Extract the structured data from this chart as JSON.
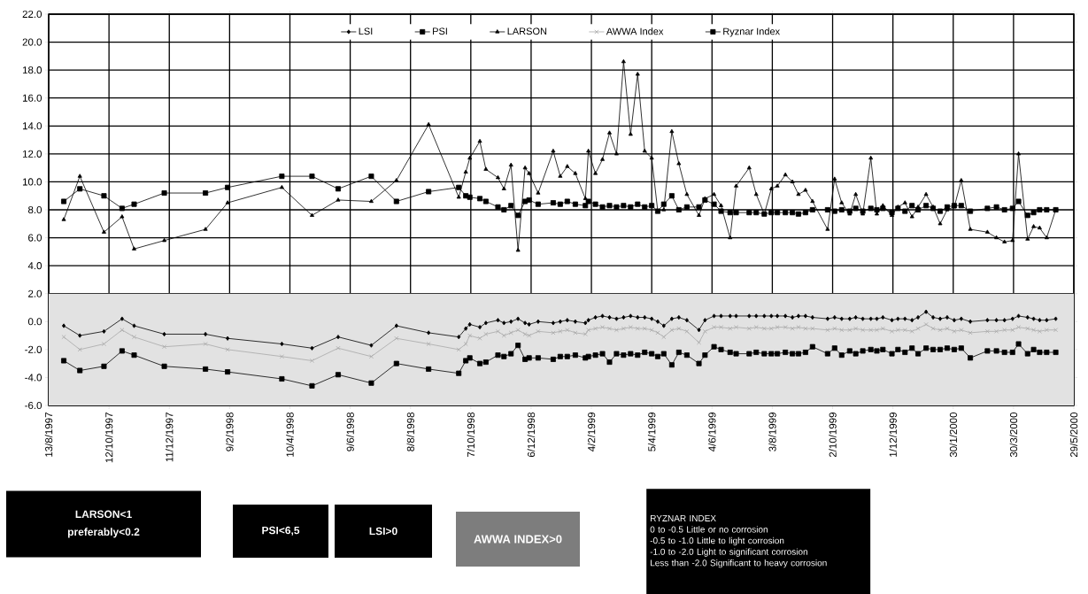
{
  "chart_data": {
    "type": "line",
    "x": [
      "1997-08-28",
      "1997-09-13",
      "1997-10-07",
      "1997-10-25",
      "1997-11-06",
      "1997-12-06",
      "1998-01-16",
      "1998-02-07",
      "1998-04-02",
      "1998-05-02",
      "1998-05-28",
      "1998-06-30",
      "1998-07-25",
      "1998-08-26",
      "1998-09-25",
      "1998-10-02",
      "1998-10-06",
      "1998-10-16",
      "1998-10-22",
      "1998-11-03",
      "1998-11-09",
      "1998-11-16",
      "1998-11-23",
      "1998-11-30",
      "1998-12-04",
      "1998-12-13",
      "1998-12-28",
      "1999-01-04",
      "1999-01-11",
      "1999-01-19",
      "1999-01-29",
      "1999-02-01",
      "1999-02-08",
      "1999-02-15",
      "1999-02-22",
      "1999-03-01",
      "1999-03-08",
      "1999-03-15",
      "1999-03-22",
      "1999-03-29",
      "1999-04-05",
      "1999-04-11",
      "1999-04-17",
      "1999-04-25",
      "1999-05-02",
      "1999-05-10",
      "1999-05-22",
      "1999-05-28",
      "1999-06-06",
      "1999-06-13",
      "1999-06-22",
      "1999-06-28",
      "1999-07-11",
      "1999-07-18",
      "1999-07-26",
      "1999-08-02",
      "1999-08-08",
      "1999-08-16",
      "1999-08-23",
      "1999-08-29",
      "1999-09-05",
      "1999-09-12",
      "1999-09-27",
      "1999-10-04",
      "1999-10-11",
      "1999-10-19",
      "1999-10-25",
      "1999-11-01",
      "1999-11-09",
      "1999-11-15",
      "1999-11-21",
      "1999-11-30",
      "1999-12-06",
      "1999-12-13",
      "1999-12-20",
      "1999-12-26",
      "2000-01-03",
      "2000-01-10",
      "2000-01-17",
      "2000-01-24",
      "2000-01-31",
      "2000-02-07",
      "2000-02-16",
      "2000-03-04",
      "2000-03-13",
      "2000-03-21",
      "2000-03-29",
      "2000-04-04",
      "2000-04-13",
      "2000-04-19",
      "2000-04-25",
      "2000-05-02",
      "2000-05-11"
    ],
    "series": [
      {
        "name": "LSI",
        "color": "#000000",
        "marker": "diamond",
        "values": [
          -0.3,
          -1.0,
          -0.7,
          0.2,
          -0.3,
          -0.9,
          -0.9,
          -1.2,
          -1.6,
          -1.9,
          -1.1,
          -1.7,
          -0.3,
          -0.8,
          -1.1,
          -0.5,
          -0.2,
          -0.4,
          -0.1,
          0.1,
          -0.1,
          0.0,
          0.2,
          -0.1,
          -0.2,
          0.0,
          -0.1,
          0.0,
          0.1,
          0.0,
          -0.1,
          0.1,
          0.3,
          0.4,
          0.3,
          0.2,
          0.3,
          0.4,
          0.3,
          0.3,
          0.2,
          0.0,
          -0.3,
          0.2,
          0.3,
          0.1,
          -0.6,
          0.1,
          0.4,
          0.4,
          0.4,
          0.4,
          0.4,
          0.4,
          0.4,
          0.4,
          0.4,
          0.4,
          0.3,
          0.4,
          0.4,
          0.3,
          0.2,
          0.3,
          0.2,
          0.2,
          0.3,
          0.2,
          0.2,
          0.2,
          0.3,
          0.1,
          0.2,
          0.2,
          0.1,
          0.3,
          0.7,
          0.3,
          0.2,
          0.3,
          0.1,
          0.2,
          0.0,
          0.1,
          0.1,
          0.1,
          0.2,
          0.4,
          0.3,
          0.2,
          0.1,
          0.1,
          0.2
        ]
      },
      {
        "name": "PSI",
        "color": "#000000",
        "marker": "square",
        "values": [
          8.6,
          9.5,
          9.0,
          8.1,
          8.4,
          9.2,
          9.2,
          9.6,
          10.4,
          10.4,
          9.5,
          10.4,
          8.6,
          9.3,
          9.6,
          9.0,
          8.9,
          8.8,
          8.6,
          8.2,
          8.0,
          8.3,
          7.6,
          8.6,
          8.7,
          8.4,
          8.5,
          8.4,
          8.6,
          8.4,
          8.3,
          8.6,
          8.4,
          8.2,
          8.3,
          8.2,
          8.3,
          8.2,
          8.4,
          8.2,
          8.3,
          7.9,
          8.4,
          9.0,
          8.0,
          8.2,
          8.2,
          8.7,
          8.4,
          7.9,
          7.8,
          7.8,
          7.8,
          7.8,
          7.7,
          7.8,
          7.8,
          7.8,
          7.8,
          7.7,
          7.8,
          8.0,
          8.0,
          7.9,
          8.0,
          7.9,
          8.1,
          7.9,
          8.1,
          8.0,
          8.1,
          7.8,
          8.1,
          7.9,
          8.3,
          8.0,
          8.3,
          8.1,
          7.9,
          8.2,
          8.3,
          8.3,
          7.9,
          8.1,
          8.2,
          8.0,
          8.1,
          8.6,
          7.6,
          7.8,
          8.0,
          8.0,
          8.0
        ]
      },
      {
        "name": "LARSON",
        "color": "#000000",
        "marker": "triangle",
        "values": [
          7.3,
          10.4,
          6.4,
          7.5,
          5.2,
          5.8,
          6.6,
          8.5,
          9.6,
          7.6,
          8.7,
          8.6,
          10.1,
          14.1,
          8.9,
          10.7,
          11.7,
          12.9,
          10.9,
          10.3,
          9.5,
          11.2,
          5.1,
          11.0,
          10.6,
          9.2,
          12.2,
          10.4,
          11.1,
          10.6,
          8.8,
          12.2,
          10.6,
          11.6,
          13.5,
          12.0,
          18.6,
          13.4,
          17.7,
          12.2,
          11.7,
          7.9,
          8.0,
          13.6,
          11.3,
          9.1,
          7.6,
          8.8,
          9.1,
          8.3,
          6.0,
          9.7,
          11.0,
          9.1,
          7.7,
          9.5,
          9.7,
          10.5,
          10.0,
          9.1,
          9.4,
          8.6,
          6.6,
          10.2,
          8.5,
          7.7,
          9.1,
          7.7,
          11.7,
          7.7,
          8.3,
          7.6,
          8.2,
          8.5,
          7.5,
          8.2,
          9.1,
          8.2,
          7.0,
          8.0,
          8.2,
          10.1,
          6.6,
          6.4,
          6.0,
          5.7,
          5.8,
          12.0,
          5.9,
          6.8,
          6.7,
          6.0,
          8.0
        ]
      },
      {
        "name": "AWWA Index",
        "color": "#a8a8a8",
        "marker": "cross",
        "values": [
          -1.1,
          -2.0,
          -1.6,
          -0.6,
          -1.1,
          -1.8,
          -1.6,
          -2.0,
          -2.5,
          -2.8,
          -1.9,
          -2.5,
          -1.2,
          -1.6,
          -2.0,
          -1.6,
          -1.0,
          -1.2,
          -0.9,
          -0.7,
          -1.0,
          -0.8,
          -0.6,
          -0.9,
          -1.0,
          -0.7,
          -0.8,
          -0.7,
          -0.6,
          -0.8,
          -0.9,
          -0.6,
          -0.5,
          -0.4,
          -0.5,
          -0.6,
          -0.5,
          -0.4,
          -0.5,
          -0.5,
          -0.6,
          -0.8,
          -1.1,
          -0.6,
          -0.5,
          -0.7,
          -1.5,
          -0.7,
          -0.4,
          -0.4,
          -0.5,
          -0.4,
          -0.5,
          -0.4,
          -0.5,
          -0.5,
          -0.4,
          -0.4,
          -0.5,
          -0.4,
          -0.5,
          -0.5,
          -0.6,
          -0.5,
          -0.6,
          -0.6,
          -0.5,
          -0.6,
          -0.6,
          -0.6,
          -0.5,
          -0.7,
          -0.6,
          -0.6,
          -0.7,
          -0.5,
          -0.2,
          -0.5,
          -0.6,
          -0.5,
          -0.7,
          -0.6,
          -0.8,
          -0.7,
          -0.7,
          -0.6,
          -0.6,
          -0.4,
          -0.5,
          -0.6,
          -0.7,
          -0.6,
          -0.6
        ]
      },
      {
        "name": "Ryznar Index",
        "color": "#000000",
        "marker": "square",
        "values": [
          -2.8,
          -3.5,
          -3.2,
          -2.1,
          -2.4,
          -3.2,
          -3.4,
          -3.6,
          -4.1,
          -4.6,
          -3.8,
          -4.4,
          -3.0,
          -3.4,
          -3.7,
          -2.8,
          -2.6,
          -3.0,
          -2.9,
          -2.4,
          -2.5,
          -2.3,
          -1.7,
          -2.7,
          -2.6,
          -2.6,
          -2.7,
          -2.5,
          -2.5,
          -2.4,
          -2.6,
          -2.5,
          -2.4,
          -2.3,
          -2.9,
          -2.3,
          -2.4,
          -2.3,
          -2.4,
          -2.2,
          -2.3,
          -2.5,
          -2.3,
          -3.1,
          -2.2,
          -2.4,
          -3.0,
          -2.4,
          -1.8,
          -2.0,
          -2.2,
          -2.3,
          -2.3,
          -2.2,
          -2.3,
          -2.3,
          -2.3,
          -2.2,
          -2.3,
          -2.3,
          -2.2,
          -1.8,
          -2.3,
          -1.9,
          -2.4,
          -2.1,
          -2.3,
          -2.1,
          -2.0,
          -2.1,
          -2.0,
          -2.3,
          -2.0,
          -2.2,
          -1.9,
          -2.3,
          -1.9,
          -2.0,
          -2.0,
          -1.9,
          -2.0,
          -1.9,
          -2.6,
          -2.1,
          -2.1,
          -2.2,
          -2.2,
          -1.6,
          -2.3,
          -2.0,
          -2.2,
          -2.2,
          -2.2
        ]
      }
    ],
    "xlim": [
      "1997-08-13",
      "2000-05-29"
    ],
    "xticks": [
      {
        "value": "1997-08-13",
        "label": "13/8/1997"
      },
      {
        "value": "1997-10-12",
        "label": "12/10/1997"
      },
      {
        "value": "1997-12-11",
        "label": "11/12/1997"
      },
      {
        "value": "1998-02-09",
        "label": "9/2/1998"
      },
      {
        "value": "1998-04-10",
        "label": "10/4/1998"
      },
      {
        "value": "1998-06-09",
        "label": "9/6/1998"
      },
      {
        "value": "1998-08-08",
        "label": "8/8/1998"
      },
      {
        "value": "1998-10-07",
        "label": "7/10/1998"
      },
      {
        "value": "1998-12-06",
        "label": "6/12/1998"
      },
      {
        "value": "1999-02-04",
        "label": "4/2/1999"
      },
      {
        "value": "1999-04-05",
        "label": "5/4/1999"
      },
      {
        "value": "1999-06-04",
        "label": "4/6/1999"
      },
      {
        "value": "1999-08-03",
        "label": "3/8/1999"
      },
      {
        "value": "1999-10-02",
        "label": "2/10/1999"
      },
      {
        "value": "1999-12-01",
        "label": "1/12/1999"
      },
      {
        "value": "2000-01-30",
        "label": "30/1/2000"
      },
      {
        "value": "2000-03-30",
        "label": "30/3/2000"
      },
      {
        "value": "2000-05-29",
        "label": "29/5/2000"
      }
    ],
    "ylim": [
      -6,
      22
    ],
    "yticks": [
      {
        "value": -6,
        "label": "-6.0"
      },
      {
        "value": -4,
        "label": "-4.0"
      },
      {
        "value": -2,
        "label": "-2.0"
      },
      {
        "value": 0,
        "label": "0.0"
      },
      {
        "value": 2,
        "label": "2.0"
      },
      {
        "value": 4,
        "label": "4.0"
      },
      {
        "value": 6,
        "label": "6.0"
      },
      {
        "value": 8,
        "label": "8.0"
      },
      {
        "value": 10,
        "label": "10.0"
      },
      {
        "value": 12,
        "label": "12.0"
      },
      {
        "value": 14,
        "label": "14.0"
      },
      {
        "value": 16,
        "label": "16.0"
      },
      {
        "value": 18,
        "label": "18.0"
      },
      {
        "value": 20,
        "label": "20.0"
      },
      {
        "value": 22,
        "label": "22.0"
      }
    ],
    "bands": [
      {
        "axis": "y",
        "from": -6,
        "to": 2,
        "color": "#e2e2e2"
      }
    ],
    "grid": true,
    "legend": "top",
    "line_style": "solid",
    "annotations": [
      "LARSON<1",
      "preferably<0.2",
      "PSI<6,5",
      "LSI>0",
      "AWWA INDEX>0",
      "RYZNAR INDEX",
      "0 to -0.5 Little or no corrosion",
      "-0.5 to -1.0 Little to light corrosion",
      "-1.0 to -2.0 Light to significant corrosion",
      "Less than -2.0 Significant to heavy corrosion"
    ]
  }
}
